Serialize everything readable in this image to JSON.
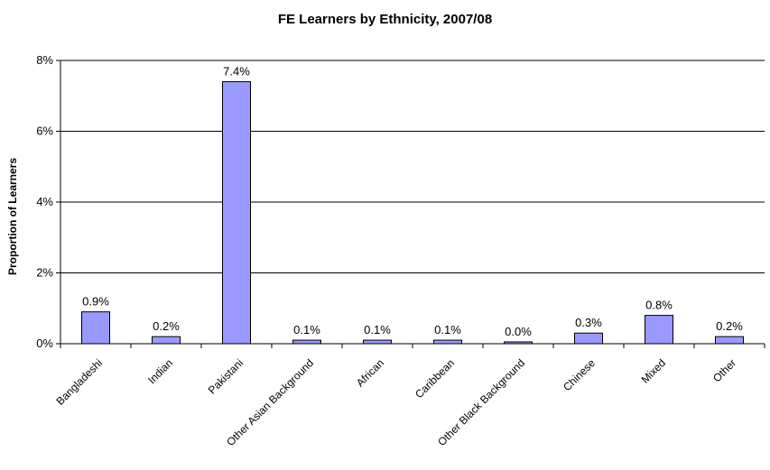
{
  "chart_data": {
    "type": "bar",
    "title": "FE Learners by Ethnicity, 2007/08",
    "ylabel": "Proportion of Learners",
    "xlabel": "",
    "categories": [
      "Bangladeshi",
      "Indian",
      "Pakistani",
      "Other Asian Background",
      "African",
      "Caribbean",
      "Other Black Background",
      "Chinese",
      "Mixed",
      "Other"
    ],
    "values": [
      0.9,
      0.2,
      7.4,
      0.1,
      0.1,
      0.1,
      0.0,
      0.3,
      0.8,
      0.2
    ],
    "data_labels": [
      "0.9%",
      "0.2%",
      "7.4%",
      "0.1%",
      "0.1%",
      "0.1%",
      "0.0%",
      "0.3%",
      "0.8%",
      "0.2%"
    ],
    "ylim": [
      0,
      8
    ],
    "yticks": [
      0,
      2,
      4,
      6,
      8
    ],
    "ytick_labels": [
      "0%",
      "2%",
      "4%",
      "6%",
      "8%"
    ],
    "grid": true,
    "bar_color": "#9999ff",
    "bar_stroke": "#000000"
  }
}
